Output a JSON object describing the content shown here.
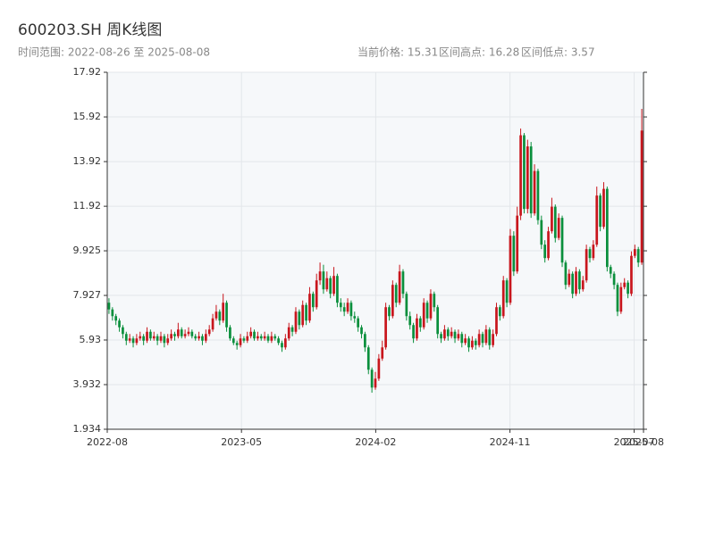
{
  "chart_data": {
    "type": "candlestick",
    "title": "600203.SH 周K线图",
    "subtitle": "时间范围: 2022-08-26 至 2025-08-08",
    "info": [
      "当前价格: 15.31",
      "区间高点: 16.28",
      "区间低点: 3.57"
    ],
    "up_color": "#c8161d",
    "down_color": "#0a8f3c",
    "grid": true,
    "ylim": [
      1.934,
      17.92
    ],
    "yticks": [
      1.934,
      3.932,
      5.93,
      7.927,
      9.925,
      11.92,
      13.92,
      15.92,
      17.92
    ],
    "xlim": [
      -0.5,
      154.5
    ],
    "xticks": [
      {
        "value": -0.5,
        "label": "2022-08"
      },
      {
        "value": 38.3,
        "label": "2023-05"
      },
      {
        "value": 77.1,
        "label": "2024-02"
      },
      {
        "value": 115.9,
        "label": "2024-11"
      },
      {
        "value": 151.8,
        "label": "2025-07"
      },
      {
        "value": 154.5,
        "label": "2025-08"
      }
    ],
    "candles": [
      [
        7.6,
        7.8,
        7.1,
        7.3
      ],
      [
        7.3,
        7.4,
        6.8,
        7.0
      ],
      [
        7.0,
        7.1,
        6.6,
        6.8
      ],
      [
        6.8,
        6.9,
        6.3,
        6.5
      ],
      [
        6.5,
        6.6,
        6.0,
        6.2
      ],
      [
        6.2,
        6.3,
        5.7,
        5.9
      ],
      [
        5.9,
        6.2,
        5.8,
        6.0
      ],
      [
        6.0,
        6.1,
        5.6,
        5.8
      ],
      [
        5.8,
        6.2,
        5.7,
        6.0
      ],
      [
        6.0,
        6.3,
        5.9,
        6.1
      ],
      [
        6.1,
        6.2,
        5.7,
        5.9
      ],
      [
        5.9,
        6.5,
        5.8,
        6.3
      ],
      [
        6.3,
        6.4,
        5.9,
        6.0
      ],
      [
        6.0,
        6.3,
        5.9,
        6.1
      ],
      [
        6.1,
        6.2,
        5.7,
        5.9
      ],
      [
        5.9,
        6.3,
        5.8,
        6.1
      ],
      [
        6.1,
        6.2,
        5.6,
        5.8
      ],
      [
        5.8,
        6.2,
        5.7,
        6.0
      ],
      [
        6.0,
        6.4,
        5.9,
        6.2
      ],
      [
        6.2,
        6.3,
        5.9,
        6.1
      ],
      [
        6.1,
        6.7,
        6.0,
        6.4
      ],
      [
        6.4,
        6.5,
        6.0,
        6.1
      ],
      [
        6.1,
        6.4,
        6.0,
        6.2
      ],
      [
        6.2,
        6.5,
        6.1,
        6.3
      ],
      [
        6.3,
        6.4,
        6.0,
        6.1
      ],
      [
        6.1,
        6.2,
        5.9,
        6.0
      ],
      [
        6.0,
        6.3,
        5.9,
        6.1
      ],
      [
        6.1,
        6.2,
        5.7,
        5.9
      ],
      [
        5.9,
        6.4,
        5.8,
        6.2
      ],
      [
        6.2,
        6.6,
        6.1,
        6.4
      ],
      [
        6.4,
        7.1,
        6.3,
        6.9
      ],
      [
        6.9,
        7.5,
        6.8,
        7.2
      ],
      [
        7.2,
        7.3,
        6.6,
        6.8
      ],
      [
        6.8,
        8.0,
        6.7,
        7.6
      ],
      [
        7.6,
        7.7,
        6.3,
        6.5
      ],
      [
        6.5,
        6.6,
        5.9,
        6.0
      ],
      [
        6.0,
        6.1,
        5.7,
        5.8
      ],
      [
        5.8,
        5.9,
        5.5,
        5.7
      ],
      [
        5.7,
        6.2,
        5.6,
        6.0
      ],
      [
        6.0,
        6.1,
        5.8,
        5.9
      ],
      [
        5.9,
        6.3,
        5.8,
        6.1
      ],
      [
        6.1,
        6.5,
        6.0,
        6.3
      ],
      [
        6.3,
        6.4,
        5.9,
        6.0
      ],
      [
        6.0,
        6.3,
        5.9,
        6.1
      ],
      [
        6.1,
        6.2,
        5.9,
        6.0
      ],
      [
        6.0,
        6.3,
        5.9,
        6.1
      ],
      [
        6.1,
        6.2,
        5.8,
        5.9
      ],
      [
        5.9,
        6.3,
        5.8,
        6.1
      ],
      [
        6.1,
        6.2,
        5.9,
        6.0
      ],
      [
        6.0,
        6.1,
        5.7,
        5.8
      ],
      [
        5.8,
        5.9,
        5.4,
        5.6
      ],
      [
        5.6,
        6.2,
        5.5,
        6.0
      ],
      [
        6.0,
        6.7,
        5.9,
        6.5
      ],
      [
        6.5,
        6.6,
        6.1,
        6.3
      ],
      [
        6.3,
        7.4,
        6.2,
        7.2
      ],
      [
        7.2,
        7.3,
        6.4,
        6.6
      ],
      [
        6.6,
        7.7,
        6.5,
        7.5
      ],
      [
        7.5,
        7.6,
        6.6,
        6.8
      ],
      [
        6.8,
        8.3,
        6.7,
        8.0
      ],
      [
        8.0,
        8.1,
        7.2,
        7.4
      ],
      [
        7.4,
        8.9,
        7.3,
        8.6
      ],
      [
        8.6,
        9.4,
        8.4,
        9.0
      ],
      [
        9.0,
        9.3,
        8.0,
        8.2
      ],
      [
        8.2,
        9.0,
        8.1,
        8.7
      ],
      [
        8.7,
        8.8,
        7.8,
        8.0
      ],
      [
        8.0,
        9.2,
        7.9,
        8.8
      ],
      [
        8.8,
        8.9,
        7.4,
        7.6
      ],
      [
        7.6,
        7.8,
        7.2,
        7.4
      ],
      [
        7.4,
        7.6,
        7.0,
        7.2
      ],
      [
        7.2,
        7.8,
        7.1,
        7.6
      ],
      [
        7.6,
        7.7,
        6.8,
        7.0
      ],
      [
        7.0,
        7.2,
        6.7,
        6.9
      ],
      [
        6.9,
        7.0,
        6.3,
        6.5
      ],
      [
        6.5,
        6.6,
        6.0,
        6.2
      ],
      [
        6.2,
        6.3,
        5.4,
        5.6
      ],
      [
        5.6,
        5.7,
        4.4,
        4.6
      ],
      [
        4.6,
        4.7,
        3.57,
        3.8
      ],
      [
        3.8,
        4.5,
        3.7,
        4.2
      ],
      [
        4.2,
        5.3,
        4.1,
        5.1
      ],
      [
        5.1,
        5.9,
        5.0,
        5.6
      ],
      [
        5.6,
        7.6,
        5.5,
        7.4
      ],
      [
        7.4,
        7.5,
        6.8,
        7.0
      ],
      [
        7.0,
        8.6,
        6.9,
        8.4
      ],
      [
        8.4,
        8.5,
        7.4,
        7.6
      ],
      [
        7.6,
        9.3,
        7.5,
        9.0
      ],
      [
        9.0,
        9.1,
        7.8,
        8.0
      ],
      [
        8.0,
        8.1,
        6.8,
        7.0
      ],
      [
        7.0,
        7.2,
        6.4,
        6.6
      ],
      [
        6.6,
        6.7,
        5.8,
        6.0
      ],
      [
        6.0,
        7.1,
        5.9,
        6.9
      ],
      [
        6.9,
        7.0,
        6.3,
        6.5
      ],
      [
        6.5,
        7.8,
        6.4,
        7.6
      ],
      [
        7.6,
        7.7,
        6.7,
        6.9
      ],
      [
        6.9,
        8.2,
        6.8,
        8.0
      ],
      [
        8.0,
        8.1,
        7.2,
        7.4
      ],
      [
        7.4,
        7.5,
        6.0,
        6.2
      ],
      [
        6.2,
        6.3,
        5.8,
        6.0
      ],
      [
        6.0,
        6.6,
        5.9,
        6.4
      ],
      [
        6.4,
        6.5,
        5.9,
        6.1
      ],
      [
        6.1,
        6.5,
        6.0,
        6.3
      ],
      [
        6.3,
        6.4,
        5.8,
        6.0
      ],
      [
        6.0,
        6.4,
        5.9,
        6.2
      ],
      [
        6.2,
        6.3,
        5.6,
        5.8
      ],
      [
        5.8,
        6.2,
        5.7,
        6.0
      ],
      [
        6.0,
        6.1,
        5.4,
        5.6
      ],
      [
        5.6,
        6.1,
        5.5,
        5.9
      ],
      [
        5.9,
        6.0,
        5.5,
        5.7
      ],
      [
        5.7,
        6.4,
        5.6,
        6.2
      ],
      [
        6.2,
        6.3,
        5.6,
        5.8
      ],
      [
        5.8,
        6.6,
        5.7,
        6.4
      ],
      [
        6.4,
        6.5,
        5.5,
        5.7
      ],
      [
        5.7,
        6.4,
        5.6,
        6.2
      ],
      [
        6.2,
        7.6,
        6.1,
        7.4
      ],
      [
        7.4,
        7.5,
        6.8,
        7.0
      ],
      [
        7.0,
        8.8,
        6.9,
        8.6
      ],
      [
        8.6,
        8.7,
        7.4,
        7.6
      ],
      [
        7.6,
        10.9,
        7.5,
        10.6
      ],
      [
        10.6,
        10.8,
        8.8,
        9.0
      ],
      [
        9.0,
        11.9,
        8.9,
        11.5
      ],
      [
        11.5,
        15.4,
        11.3,
        15.1
      ],
      [
        15.1,
        15.2,
        11.6,
        11.8
      ],
      [
        11.8,
        14.9,
        11.6,
        14.6
      ],
      [
        14.6,
        14.8,
        11.4,
        11.6
      ],
      [
        11.6,
        13.8,
        11.5,
        13.5
      ],
      [
        13.5,
        13.6,
        11.1,
        11.3
      ],
      [
        11.3,
        11.5,
        10.0,
        10.2
      ],
      [
        10.2,
        10.4,
        9.4,
        9.6
      ],
      [
        9.6,
        11.0,
        9.5,
        10.8
      ],
      [
        10.8,
        12.3,
        10.7,
        11.9
      ],
      [
        11.9,
        12.0,
        10.3,
        10.5
      ],
      [
        10.5,
        11.6,
        10.4,
        11.4
      ],
      [
        11.4,
        11.5,
        9.2,
        9.4
      ],
      [
        9.4,
        9.5,
        8.2,
        8.4
      ],
      [
        8.4,
        9.1,
        8.3,
        8.9
      ],
      [
        8.9,
        9.0,
        7.8,
        8.0
      ],
      [
        8.0,
        9.2,
        7.9,
        9.0
      ],
      [
        9.0,
        9.1,
        8.0,
        8.2
      ],
      [
        8.2,
        8.8,
        8.1,
        8.6
      ],
      [
        8.6,
        10.2,
        8.5,
        10.0
      ],
      [
        10.0,
        10.1,
        9.4,
        9.6
      ],
      [
        9.6,
        10.4,
        9.5,
        10.2
      ],
      [
        10.2,
        12.8,
        10.1,
        12.4
      ],
      [
        12.4,
        12.5,
        10.8,
        11.0
      ],
      [
        11.0,
        13.0,
        10.9,
        12.7
      ],
      [
        12.7,
        12.8,
        9.0,
        9.2
      ],
      [
        9.2,
        9.3,
        8.7,
        8.9
      ],
      [
        8.9,
        9.0,
        8.2,
        8.4
      ],
      [
        8.4,
        8.5,
        7.0,
        7.2
      ],
      [
        7.2,
        8.5,
        7.1,
        8.3
      ],
      [
        8.3,
        8.7,
        8.2,
        8.5
      ],
      [
        8.5,
        8.6,
        7.8,
        8.0
      ],
      [
        8.0,
        9.9,
        7.9,
        9.7
      ],
      [
        9.7,
        10.2,
        9.6,
        10.0
      ],
      [
        10.0,
        10.1,
        9.2,
        9.4
      ],
      [
        9.4,
        16.28,
        9.3,
        15.31
      ]
    ]
  }
}
